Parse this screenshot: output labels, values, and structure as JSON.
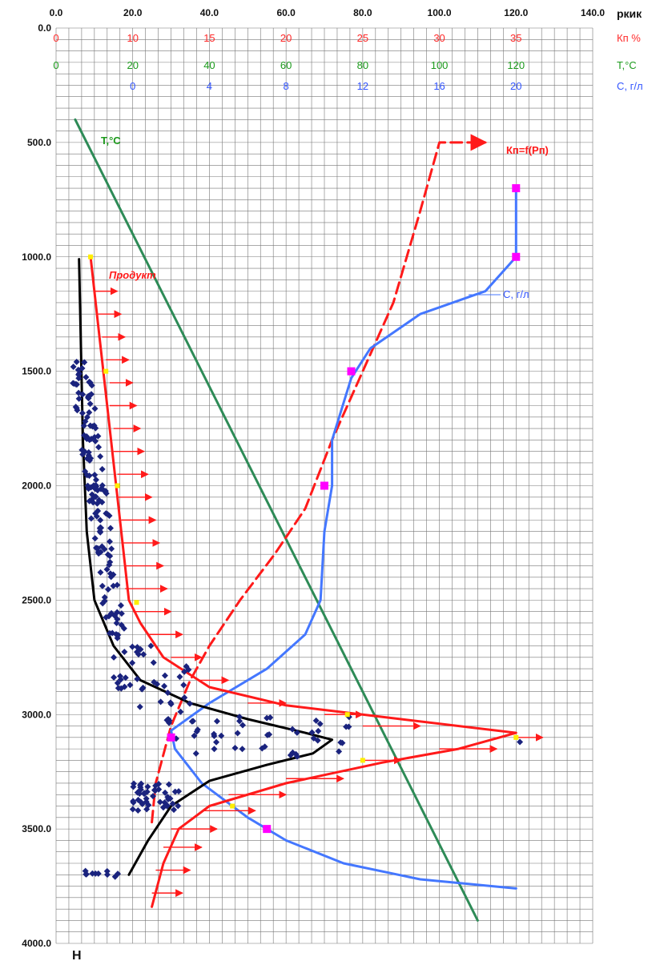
{
  "chart_data": {
    "type": "line",
    "title": "",
    "grid": true,
    "y_axis": {
      "label": "H",
      "range": [
        0,
        4000
      ],
      "inverted": true,
      "ticks": [
        "0.0",
        "500.0",
        "1000.0",
        "1500.0",
        "2000.0",
        "2500.0",
        "3000.0",
        "3500.0",
        "4000.0"
      ]
    },
    "x_axis": {
      "label": "pкик",
      "range": [
        0,
        140
      ],
      "ticks": [
        "0.0",
        "20.0",
        "40.0",
        "60.0",
        "80.0",
        "100.0",
        "120.0",
        "140.0"
      ]
    },
    "secondary_scales": [
      {
        "name": "Кп %",
        "color": "#ff2a2a",
        "range": [
          5,
          35
        ],
        "ticks": [
          "0",
          "10",
          "15",
          "20",
          "25",
          "30",
          "35"
        ]
      },
      {
        "name": "T,°C",
        "color": "#1c9a1c",
        "range": [
          0,
          120
        ],
        "ticks": [
          "0",
          "20",
          "40",
          "60",
          "80",
          "100",
          "120"
        ]
      },
      {
        "name": "C, г/л",
        "color": "#3355ff",
        "range": [
          0,
          20
        ],
        "ticks": [
          "0",
          "4",
          "8",
          "12",
          "16",
          "20"
        ]
      }
    ],
    "annotations": {
      "temperature": "T,°C",
      "kp_function": "Кп=f(Рп)",
      "product": "Продукт",
      "concentration": "С, г/л"
    },
    "series": [
      {
        "key": "temperature",
        "color": "#2e8b57",
        "style": "solid",
        "points": [
          [
            5,
            400
          ],
          [
            110,
            3900
          ]
        ]
      },
      {
        "key": "kn_fp",
        "color": "#ff1a1a",
        "style": "dashed",
        "points": [
          [
            25,
            3470
          ],
          [
            26,
            3300
          ],
          [
            30,
            3050
          ],
          [
            35,
            2850
          ],
          [
            40,
            2700
          ],
          [
            48,
            2500
          ],
          [
            57,
            2300
          ],
          [
            65,
            2100
          ],
          [
            72,
            1800
          ],
          [
            80,
            1500
          ],
          [
            88,
            1200
          ],
          [
            95,
            800
          ],
          [
            100,
            500
          ],
          [
            110,
            500
          ]
        ]
      },
      {
        "key": "concentration",
        "color": "#4477ff",
        "style": "solid",
        "points": [
          [
            120,
            700
          ],
          [
            120,
            1000
          ],
          [
            112,
            1150
          ],
          [
            95,
            1250
          ],
          [
            82,
            1400
          ],
          [
            77,
            1530
          ],
          [
            72,
            1800
          ],
          [
            72,
            2000
          ],
          [
            70,
            2200
          ],
          [
            69,
            2500
          ],
          [
            65,
            2650
          ],
          [
            55,
            2800
          ],
          [
            40,
            2950
          ],
          [
            30,
            3070
          ],
          [
            31,
            3150
          ],
          [
            38,
            3300
          ],
          [
            50,
            3450
          ],
          [
            60,
            3550
          ],
          [
            75,
            3650
          ],
          [
            95,
            3720
          ],
          [
            120,
            3760
          ]
        ]
      },
      {
        "key": "product",
        "color": "#ff1a1a",
        "style": "solid",
        "points": [
          [
            9,
            1000
          ],
          [
            11,
            1300
          ],
          [
            13,
            1600
          ],
          [
            15,
            1900
          ],
          [
            17,
            2200
          ],
          [
            19,
            2500
          ],
          [
            22,
            2600
          ],
          [
            28,
            2750
          ],
          [
            40,
            2880
          ],
          [
            60,
            2960
          ],
          [
            90,
            3020
          ],
          [
            120,
            3080
          ],
          [
            105,
            3150
          ],
          [
            85,
            3210
          ],
          [
            60,
            3300
          ],
          [
            40,
            3400
          ],
          [
            32,
            3500
          ],
          [
            28,
            3650
          ],
          [
            25,
            3840
          ]
        ]
      },
      {
        "key": "trend",
        "color": "#000000",
        "style": "solid",
        "points": [
          [
            6,
            1010
          ],
          [
            7,
            1800
          ],
          [
            8,
            2200
          ],
          [
            10,
            2500
          ],
          [
            15,
            2700
          ],
          [
            22,
            2850
          ],
          [
            35,
            2950
          ],
          [
            50,
            3020
          ],
          [
            65,
            3080
          ],
          [
            72,
            3110
          ],
          [
            67,
            3170
          ],
          [
            55,
            3220
          ],
          [
            40,
            3290
          ],
          [
            30,
            3400
          ],
          [
            24,
            3550
          ],
          [
            19,
            3700
          ]
        ]
      }
    ],
    "markers": {
      "magenta_squares": [
        [
          120,
          700
        ],
        [
          120,
          1000
        ],
        [
          77,
          1500
        ],
        [
          70,
          2000
        ],
        [
          30,
          3100
        ],
        [
          55,
          3500
        ]
      ],
      "yellow_points": [
        [
          9,
          1000
        ],
        [
          13,
          1500
        ],
        [
          16,
          2000
        ],
        [
          21,
          2510
        ],
        [
          76,
          3000
        ],
        [
          120,
          3100
        ],
        [
          80,
          3200
        ],
        [
          46,
          3400
        ]
      ]
    },
    "product_arrows": [
      [
        1150,
        10,
        16
      ],
      [
        1250,
        11,
        17
      ],
      [
        1350,
        12,
        18
      ],
      [
        1450,
        13,
        19
      ],
      [
        1550,
        14,
        20
      ],
      [
        1650,
        14,
        21
      ],
      [
        1750,
        15,
        22
      ],
      [
        1850,
        15,
        23
      ],
      [
        1950,
        16,
        24
      ],
      [
        2050,
        16,
        25
      ],
      [
        2150,
        17,
        26
      ],
      [
        2250,
        17,
        27
      ],
      [
        2350,
        18,
        28
      ],
      [
        2450,
        18,
        29
      ],
      [
        2550,
        20,
        30
      ],
      [
        2650,
        24,
        33
      ],
      [
        2750,
        30,
        38
      ],
      [
        2850,
        37,
        45
      ],
      [
        2950,
        50,
        60
      ],
      [
        3000,
        70,
        80
      ],
      [
        3050,
        80,
        95
      ],
      [
        3100,
        120,
        127
      ],
      [
        3150,
        100,
        115
      ],
      [
        3200,
        80,
        90
      ],
      [
        3280,
        60,
        75
      ],
      [
        3350,
        45,
        60
      ],
      [
        3420,
        38,
        52
      ],
      [
        3500,
        30,
        42
      ],
      [
        3580,
        28,
        38
      ],
      [
        3680,
        26,
        35
      ],
      [
        3780,
        25,
        33
      ]
    ],
    "scatter_description": "dark blue diamond points"
  }
}
